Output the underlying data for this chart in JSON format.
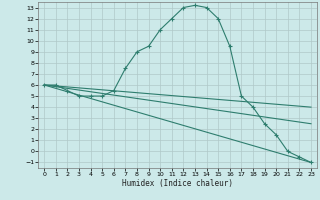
{
  "background_color": "#cce9e9",
  "grid_color": "#b0c8c8",
  "line_color": "#2e7d6e",
  "xlabel": "Humidex (Indice chaleur)",
  "xlim": [
    -0.5,
    23.5
  ],
  "ylim": [
    -1.5,
    13.5
  ],
  "xticks": [
    0,
    1,
    2,
    3,
    4,
    5,
    6,
    7,
    8,
    9,
    10,
    11,
    12,
    13,
    14,
    15,
    16,
    17,
    18,
    19,
    20,
    21,
    22,
    23
  ],
  "yticks": [
    -1,
    0,
    1,
    2,
    3,
    4,
    5,
    6,
    7,
    8,
    9,
    10,
    11,
    12,
    13
  ],
  "main_curve": {
    "x": [
      0,
      1,
      2,
      3,
      4,
      5,
      6,
      7,
      8,
      9,
      10,
      11,
      12,
      13,
      14,
      15,
      16,
      17,
      18,
      19,
      20,
      21,
      22,
      23
    ],
    "y": [
      6,
      6,
      5.5,
      5,
      5,
      5,
      5.5,
      7.5,
      9,
      9.5,
      11,
      12,
      13,
      13.2,
      13,
      12,
      9.5,
      5,
      4,
      2.5,
      1.5,
      0,
      -0.5,
      -1
    ]
  },
  "fan_lines": [
    {
      "x": [
        0,
        23
      ],
      "y": [
        6,
        -1
      ]
    },
    {
      "x": [
        0,
        23
      ],
      "y": [
        6,
        4
      ]
    },
    {
      "x": [
        0,
        23
      ],
      "y": [
        6,
        2.5
      ]
    }
  ]
}
